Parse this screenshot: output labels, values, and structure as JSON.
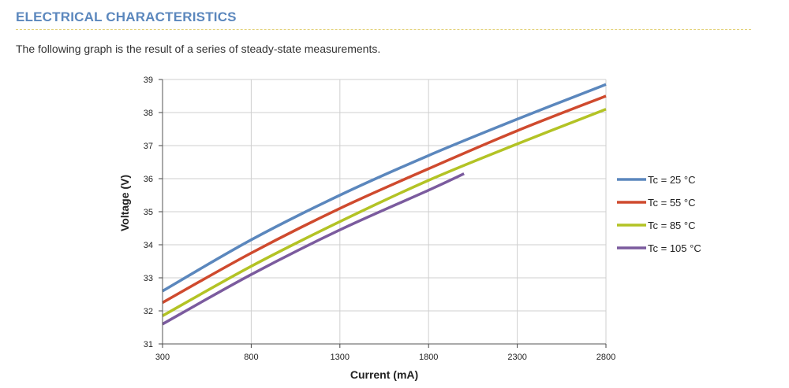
{
  "section": {
    "title": "ELECTRICAL CHARACTERISTICS",
    "intro": "The following graph is the result of a series of steady-state measurements."
  },
  "chart_data": {
    "type": "line",
    "xlabel": "Current (mA)",
    "ylabel": "Voltage (V)",
    "xlim": [
      300,
      2800
    ],
    "ylim": [
      31,
      39
    ],
    "xticks": [
      300,
      800,
      1300,
      1800,
      2300,
      2800
    ],
    "yticks": [
      31,
      32,
      33,
      34,
      35,
      36,
      37,
      38,
      39
    ],
    "grid": true,
    "legend_position": "right",
    "series": [
      {
        "name": "Tc = 25 °C",
        "color": "#5b87bd",
        "x": [
          300,
          800,
          1300,
          1800,
          2300,
          2800
        ],
        "y": [
          32.6,
          34.15,
          35.5,
          36.7,
          37.8,
          38.85
        ]
      },
      {
        "name": "Tc = 55 °C",
        "color": "#cf4a2e",
        "x": [
          300,
          800,
          1300,
          1800,
          2300,
          2800
        ],
        "y": [
          32.25,
          33.75,
          35.1,
          36.3,
          37.45,
          38.5
        ]
      },
      {
        "name": "Tc = 85 °C",
        "color": "#b3c325",
        "x": [
          300,
          800,
          1300,
          1800,
          2300,
          2800
        ],
        "y": [
          31.85,
          33.35,
          34.7,
          35.95,
          37.05,
          38.1
        ]
      },
      {
        "name": "Tc = 105 °C",
        "color": "#7b5b9e",
        "x": [
          300,
          800,
          1300,
          1800,
          2000
        ],
        "y": [
          31.6,
          33.1,
          34.45,
          35.65,
          36.15
        ]
      }
    ]
  }
}
